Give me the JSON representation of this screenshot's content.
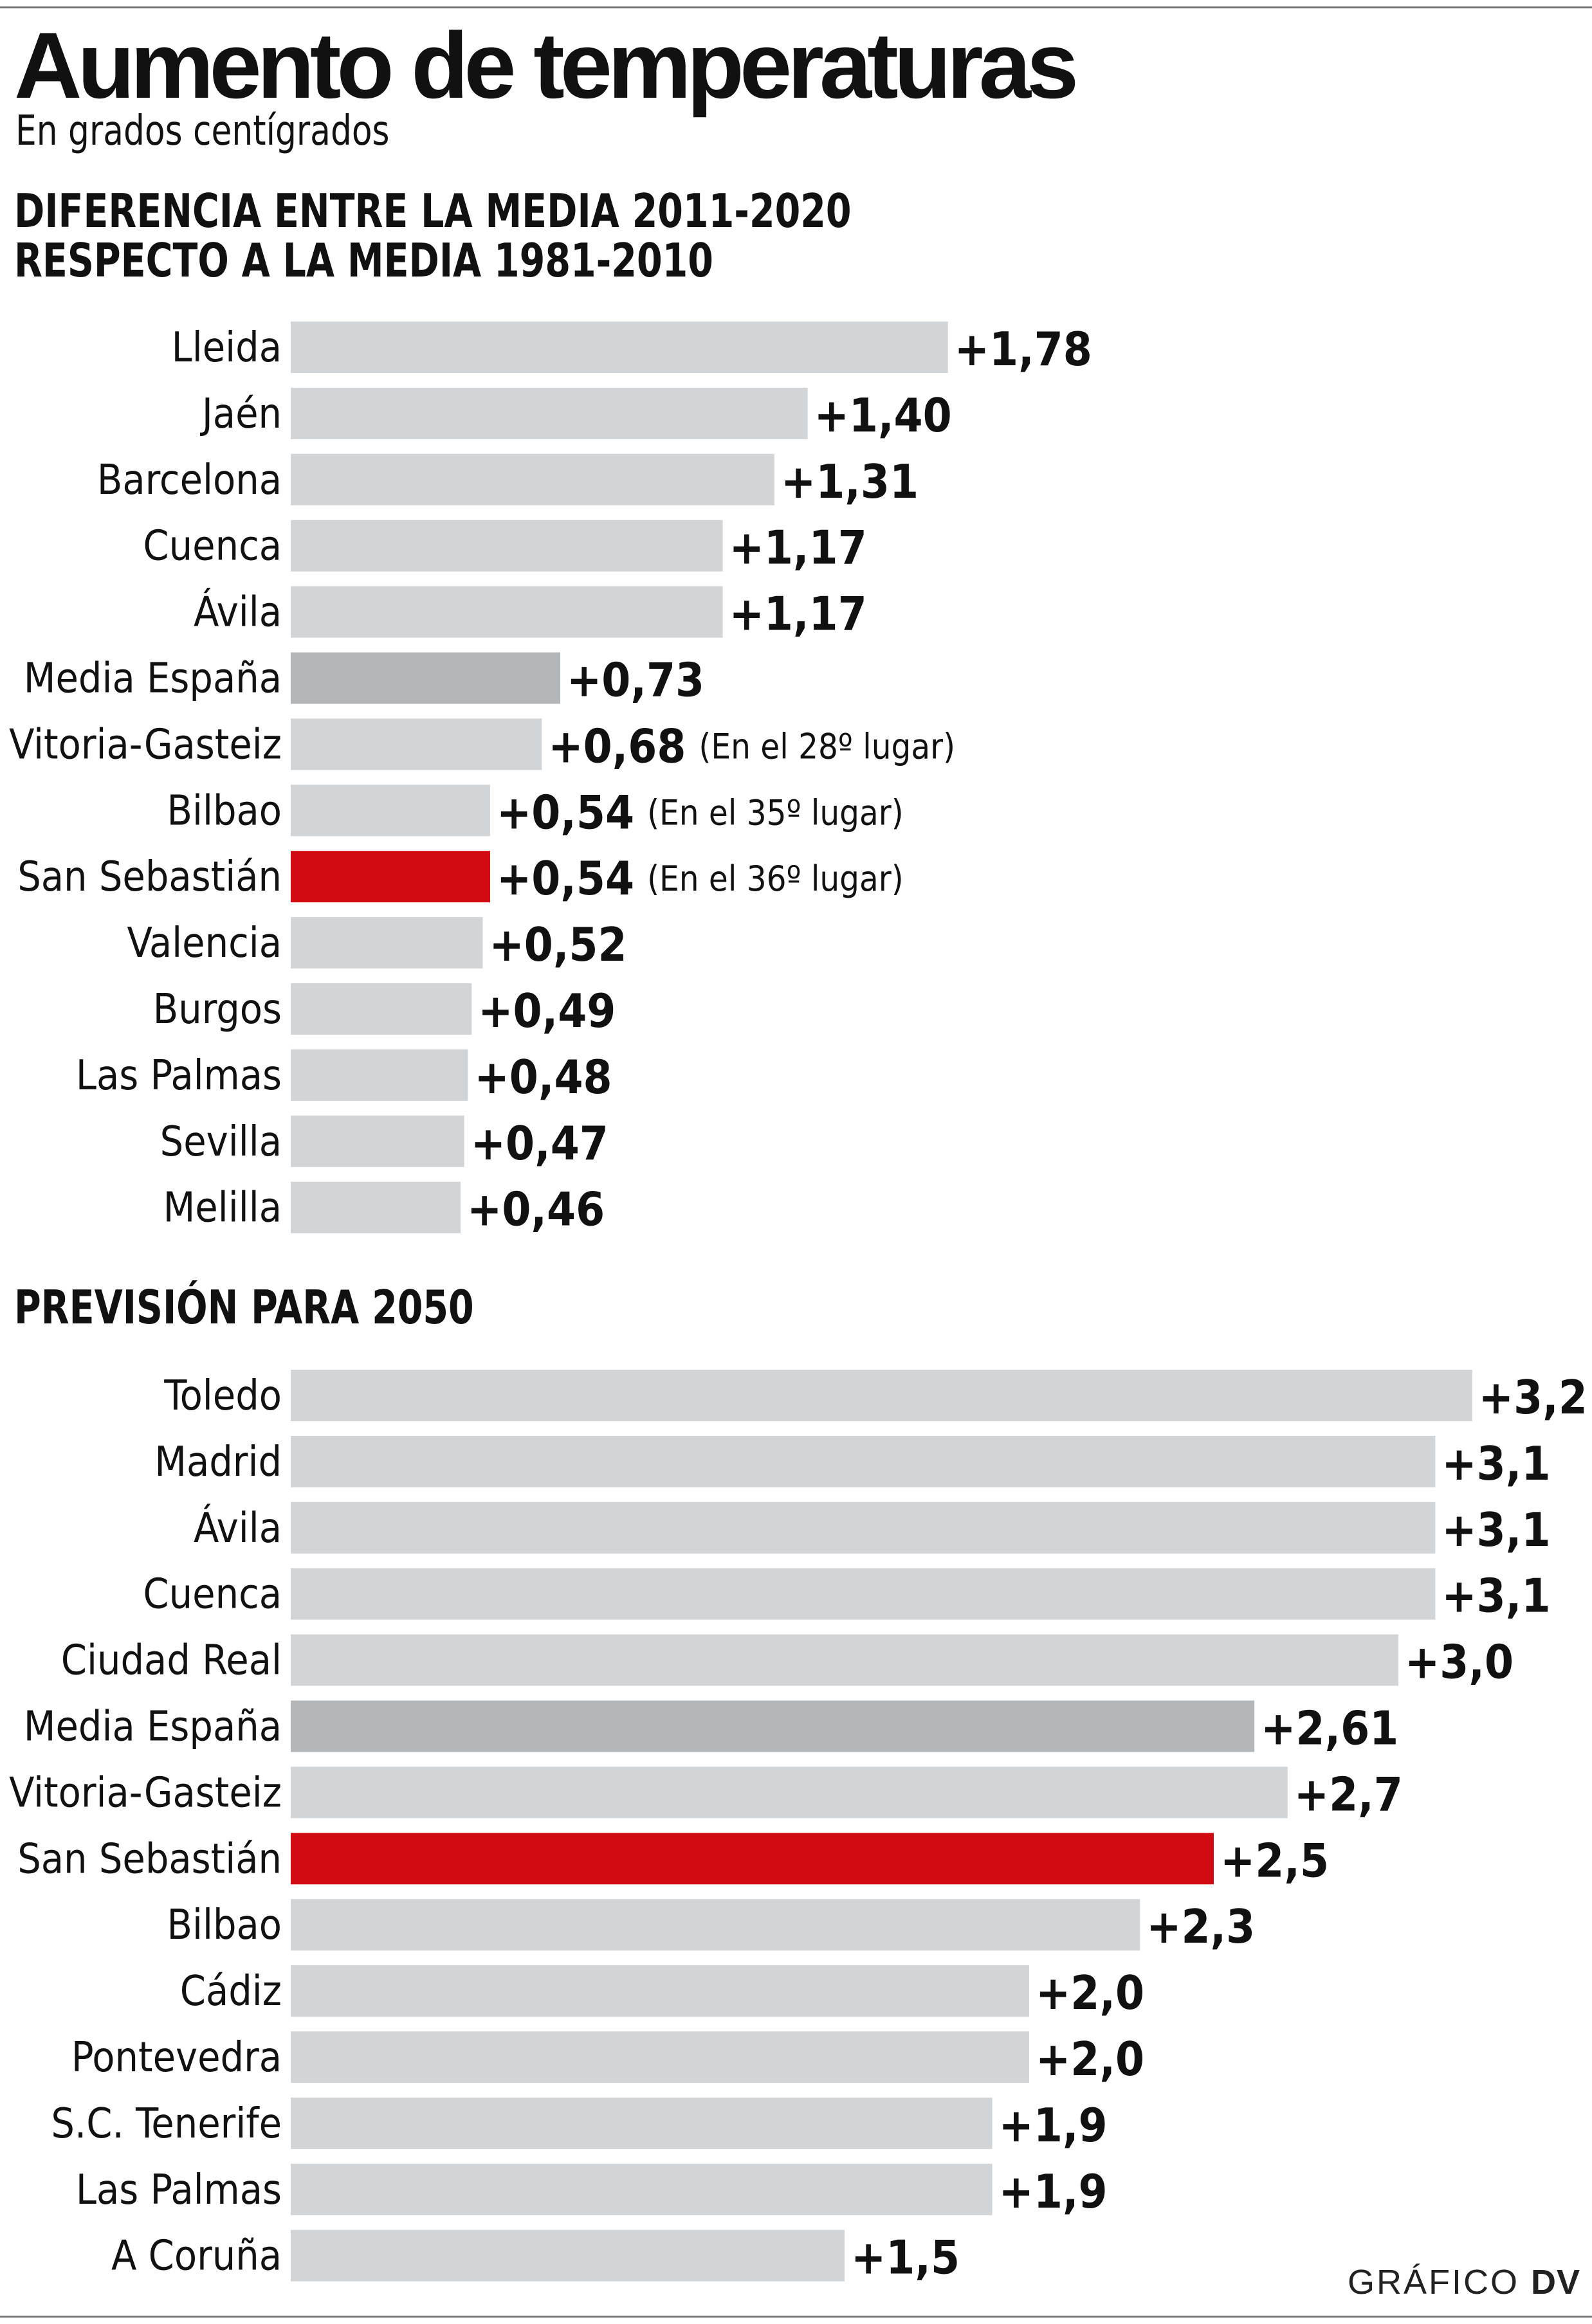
{
  "title": "Aumento de temperaturas",
  "subtitle": "En grados centígrados",
  "credit": {
    "prefix": "GRÁFICO",
    "brand": "DV"
  },
  "colors": {
    "bar": "#d2d5d7",
    "average": "#b3b7ba",
    "highlight": "#d20a11",
    "text": "#111111"
  },
  "chart_data": [
    {
      "type": "bar",
      "orientation": "horizontal",
      "title": "DIFERENCIA ENTRE LA MEDIA 2011-2020 RESPECTO A LA MEDIA 1981-2010",
      "title_lines": [
        "DIFERENCIA ENTRE LA MEDIA 2011-2020",
        "RESPECTO A LA MEDIA 1981-2010"
      ],
      "xlim": [
        0,
        3.2
      ],
      "categories": [
        "Lleida",
        "Jaén",
        "Barcelona",
        "Cuenca",
        "Ávila",
        "Media España",
        "Vitoria-Gasteiz",
        "Bilbao",
        "San Sebastián",
        "Valencia",
        "Burgos",
        "Las Palmas",
        "Sevilla",
        "Melilla"
      ],
      "values": [
        1.78,
        1.4,
        1.31,
        1.17,
        1.17,
        0.73,
        0.68,
        0.54,
        0.54,
        0.52,
        0.49,
        0.48,
        0.47,
        0.46
      ],
      "labels": [
        "+1,78",
        "+1,40",
        "+1,31",
        "+1,17",
        "+1,17",
        "+0,73",
        "+0,68",
        "+0,54",
        "+0,54",
        "+0,52",
        "+0,49",
        "+0,48",
        "+0,47",
        "+0,46"
      ],
      "notes": [
        "",
        "",
        "",
        "",
        "",
        "",
        "(En el 28º lugar)",
        "(En el 35º lugar)",
        "(En el 36º lugar)",
        "",
        "",
        "",
        "",
        ""
      ],
      "styles": [
        "base",
        "base",
        "base",
        "base",
        "base",
        "average",
        "base",
        "base",
        "highlight",
        "base",
        "base",
        "base",
        "base",
        "base"
      ]
    },
    {
      "type": "bar",
      "orientation": "horizontal",
      "title": "PREVISIÓN PARA 2050",
      "xlim": [
        0,
        3.2
      ],
      "categories": [
        "Toledo",
        "Madrid",
        "Ávila",
        "Cuenca",
        "Ciudad Real",
        "Media España",
        "Vitoria-Gasteiz",
        "San Sebastián",
        "Bilbao",
        "Cádiz",
        "Pontevedra",
        "S.C. Tenerife",
        "Las Palmas",
        "A Coruña"
      ],
      "values": [
        3.2,
        3.1,
        3.1,
        3.1,
        3.0,
        2.61,
        2.7,
        2.5,
        2.3,
        2.0,
        2.0,
        1.9,
        1.9,
        1.5
      ],
      "labels": [
        "+3,2",
        "+3,1",
        "+3,1",
        "+3,1",
        "+3,0",
        "+2,61",
        "+2,7",
        "+2,5",
        "+2,3",
        "+2,0",
        "+2,0",
        "+1,9",
        "+1,9",
        "+1,5"
      ],
      "styles": [
        "base",
        "base",
        "base",
        "base",
        "base",
        "average",
        "base",
        "highlight",
        "base",
        "base",
        "base",
        "base",
        "base",
        "base"
      ]
    }
  ]
}
